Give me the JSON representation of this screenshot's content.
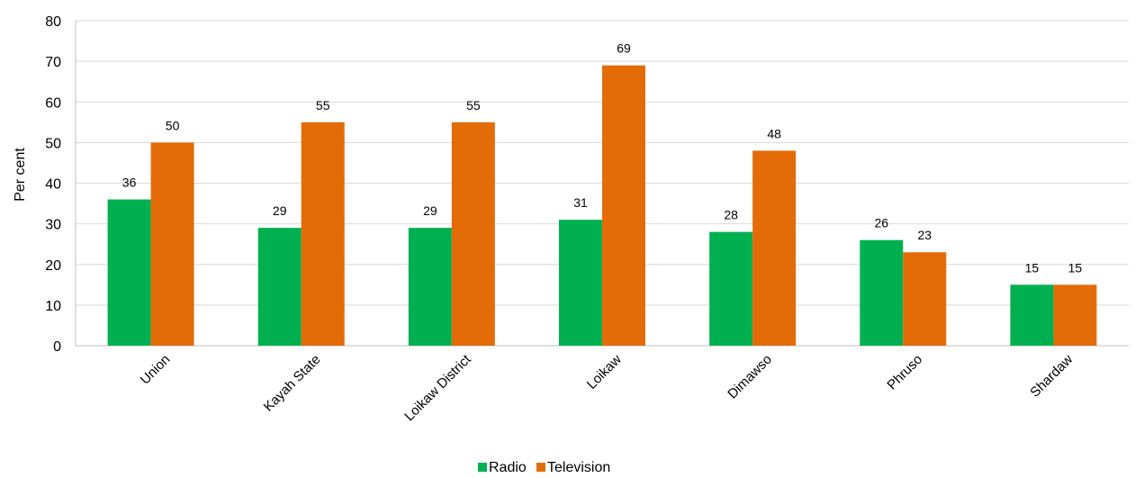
{
  "chart_data": {
    "type": "bar",
    "categories": [
      "Union",
      "Kayah State",
      "Loikaw District",
      "Loikaw",
      "Dimawso",
      "Phruso",
      "Shardaw"
    ],
    "series": [
      {
        "name": "Radio",
        "values": [
          36,
          29,
          29,
          31,
          28,
          26,
          15
        ],
        "color": "#00b050"
      },
      {
        "name": "Television",
        "values": [
          50,
          55,
          55,
          69,
          48,
          23,
          15
        ],
        "color": "#e36c09"
      }
    ],
    "ylabel": "Per cent",
    "ylim": [
      0,
      80
    ],
    "yticks": [
      0,
      10,
      20,
      30,
      40,
      50,
      60,
      70,
      80
    ],
    "grid": true,
    "legend_position": "bottom"
  }
}
